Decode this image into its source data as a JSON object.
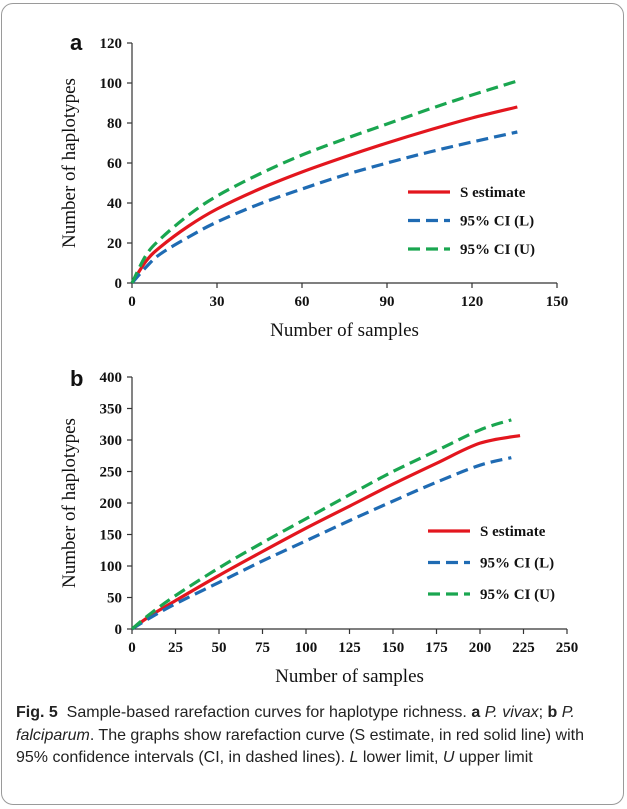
{
  "colors": {
    "s_estimate": "#e3161e",
    "ci_lower": "#1f6bb3",
    "ci_upper": "#1aa650"
  },
  "chart_data": [
    {
      "type": "line",
      "panel_label": "a",
      "xlabel": "Number of samples",
      "ylabel": "Number of haplotypes",
      "xlim": [
        0,
        150
      ],
      "ylim": [
        0,
        120
      ],
      "xticks": [
        0,
        30,
        60,
        90,
        120,
        150
      ],
      "yticks": [
        0,
        20,
        40,
        60,
        80,
        100,
        120
      ],
      "legend_position": "right",
      "series": [
        {
          "name": "S estimate",
          "style": "solid",
          "x": [
            0,
            5,
            10,
            20,
            30,
            45,
            60,
            75,
            90,
            105,
            120,
            136
          ],
          "y": [
            0,
            11,
            18,
            28.5,
            37,
            47,
            55.5,
            63,
            70,
            76.5,
            82.5,
            88
          ]
        },
        {
          "name": "95% CI (L)",
          "style": "dashed",
          "x": [
            0,
            5,
            10,
            20,
            30,
            45,
            60,
            75,
            90,
            105,
            120,
            136
          ],
          "y": [
            0,
            8,
            14.5,
            23,
            30.5,
            39.5,
            47,
            54,
            60,
            65.5,
            70.5,
            75.5
          ]
        },
        {
          "name": "95% CI (U)",
          "style": "dashed",
          "x": [
            0,
            5,
            10,
            20,
            30,
            45,
            60,
            75,
            90,
            105,
            120,
            136
          ],
          "y": [
            0,
            14,
            22,
            34,
            43.5,
            54.5,
            64,
            72,
            79.5,
            87,
            94,
            101
          ]
        }
      ]
    },
    {
      "type": "line",
      "panel_label": "b",
      "xlabel": "Number of samples",
      "ylabel": "Number of haplotypes",
      "xlim": [
        0,
        250
      ],
      "ylim": [
        0,
        400
      ],
      "xticks": [
        0,
        25,
        50,
        75,
        100,
        125,
        150,
        175,
        200,
        225,
        250
      ],
      "yticks": [
        0,
        50,
        100,
        150,
        200,
        250,
        300,
        350,
        400
      ],
      "legend_position": "right",
      "series": [
        {
          "name": "S estimate",
          "style": "solid",
          "x": [
            0,
            10,
            25,
            50,
            75,
            100,
            125,
            150,
            175,
            200,
            223
          ],
          "y": [
            0,
            20,
            45,
            85,
            123,
            160,
            195,
            230,
            263,
            295,
            307
          ]
        },
        {
          "name": "95% CI (L)",
          "style": "dashed",
          "x": [
            0,
            10,
            25,
            50,
            75,
            100,
            125,
            150,
            175,
            200,
            218
          ],
          "y": [
            0,
            17,
            40,
            74,
            108,
            140,
            172,
            203,
            233,
            260,
            272
          ]
        },
        {
          "name": "95% CI (U)",
          "style": "dashed",
          "x": [
            0,
            10,
            25,
            50,
            75,
            100,
            125,
            150,
            175,
            200,
            218
          ],
          "y": [
            0,
            23,
            53,
            97,
            137,
            175,
            213,
            250,
            283,
            316,
            332
          ]
        }
      ]
    }
  ],
  "caption": {
    "fig_label": "Fig. 5",
    "text_1": "Sample-based rarefaction curves for haplotype richness.",
    "label_a": "a",
    "species_a": "P. vivax",
    "sep": ";",
    "label_b": "b",
    "species_b": "P. falciparum",
    "text_2": ". The graphs show rarefaction curve (S estimate, in red solid line) with 95% confidence intervals (CI, in dashed lines).",
    "l_abbr": "L",
    "l_text": "lower limit,",
    "u_abbr": "U",
    "u_text": "upper limit"
  }
}
